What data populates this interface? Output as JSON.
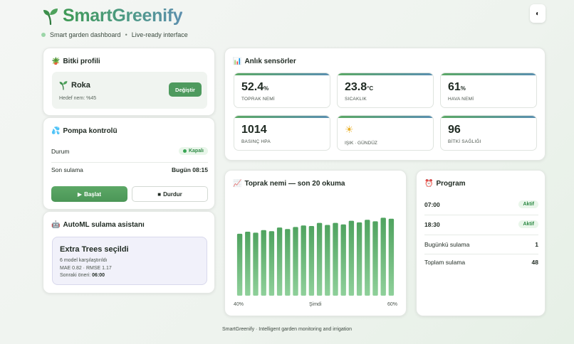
{
  "header": {
    "title": "SmartGreenify",
    "tagline_left": "Smart garden dashboard",
    "separator": "•",
    "tagline_right": "Live-ready interface",
    "theme_toggle_icon": "contrast-icon",
    "theme_toggle_glyph": "◐"
  },
  "profile": {
    "icon": "potted-plant-icon",
    "title": "Bitki profili",
    "plant_name": "Roka",
    "target": "Hedef nem: %45",
    "change_label": "Değiştir"
  },
  "pump": {
    "icon": "water-icon",
    "title": "Pompa kontrolü",
    "status_label": "Durum",
    "status_value": "Kapalı",
    "last_label": "Son sulama",
    "last_value": "Bugün 08:15",
    "start_label": "Başlat",
    "stop_label": "Durdur"
  },
  "automl": {
    "icon": "robot-icon",
    "title": "AutoML sulama asistanı",
    "model_title": "Extra Trees seçildi",
    "compared": "6 model karşılaştırıldı",
    "metrics": "MAE 0.82 · RMSE 1.17",
    "next_prefix": "Sonraki öneri:",
    "next_time": "06:00"
  },
  "sensors": {
    "icon": "bar-chart-icon",
    "title": "Anlık sensörler",
    "items": [
      {
        "value": "52.4",
        "unit": "%",
        "label": "TOPRAK NEMİ"
      },
      {
        "value": "23.8",
        "unit": "°C",
        "label": "SICAKLIK"
      },
      {
        "value": "61",
        "unit": "%",
        "label": "HAVA NEMİ"
      },
      {
        "value": "1014",
        "unit": "",
        "label": "BASINÇ HPA"
      },
      {
        "value": "",
        "unit": "",
        "label": "IŞIK · GÜNDÜZ",
        "icon": "sun-icon"
      },
      {
        "value": "96",
        "unit": "",
        "label": "BİTKİ SAĞLIĞI"
      }
    ]
  },
  "chart": {
    "icon": "line-chart-icon",
    "title": "Toprak nemi — son 20 okuma",
    "axis_left": "40%",
    "axis_mid": "Şimdi",
    "axis_right": "60%",
    "bar_color": "#4fa35f"
  },
  "chart_data": {
    "type": "bar",
    "title": "Toprak nemi — son 20 okuma",
    "values": [
      47.0,
      47.4,
      47.2,
      47.7,
      47.5,
      48.2,
      47.9,
      48.3,
      48.6,
      48.5,
      49.1,
      48.7,
      49.1,
      48.8,
      49.5,
      49.2,
      49.7,
      49.4,
      50.1,
      49.9
    ],
    "ylim": [
      35,
      54
    ],
    "color": "#4fa35f"
  },
  "program": {
    "icon": "alarm-clock-icon",
    "title": "Program",
    "slots": [
      {
        "time": "07:00",
        "status": "Aktif"
      },
      {
        "time": "18:30",
        "status": "Aktif"
      }
    ],
    "today_label": "Bugünkü sulama",
    "today_value": "1",
    "total_label": "Toplam sulama",
    "total_value": "48"
  },
  "footer": "SmartGreenify · Intelligent garden monitoring and irrigation",
  "colors": {
    "accent": "#4e9a5e",
    "brand_gradient_end": "#5d8fae"
  }
}
